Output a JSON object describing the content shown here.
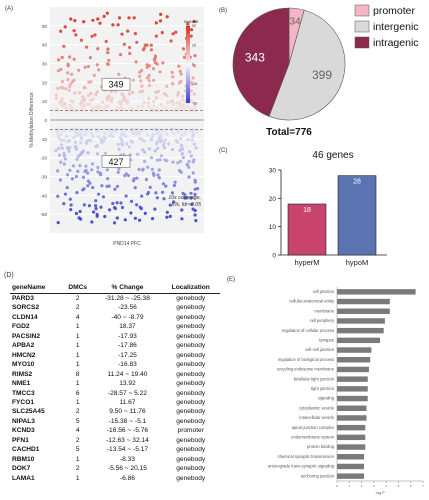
{
  "panels": {
    "a": "(A)",
    "b": "(B)",
    "c": "(C)",
    "d": "(D)",
    "e": "(E)"
  },
  "chart_data": [
    {
      "type": "scatter",
      "panel": "A",
      "ylabel": "% Methylation Difference",
      "xlabel": "PND14 PFC",
      "ylim": [
        -60,
        60
      ],
      "yticks": [
        -50,
        -40,
        -30,
        -20,
        -10,
        0,
        10,
        20,
        30,
        40,
        50
      ],
      "annotations": {
        "hyper_count": "349",
        "hypo_count": "427",
        "note_line1": "10x coverage,",
        "note_line2": "5%, fdr<0.05"
      },
      "legend": {
        "title": "MethDiff",
        "ticks": [
          "50",
          "25",
          "0",
          "-25",
          "-50"
        ]
      },
      "thresholds": [
        5,
        -5
      ],
      "series": [
        {
          "points_above": 349,
          "y_range": [
            5,
            57
          ]
        },
        {
          "points_below": 427,
          "y_range": [
            -55,
            -5
          ]
        }
      ],
      "colors": {
        "high": "#d7301f",
        "mid": "#f7f7f7",
        "low": "#3a3fcf"
      }
    },
    {
      "type": "pie",
      "panel": "B",
      "categories": [
        "promoter",
        "intergenic",
        "intragenic"
      ],
      "values": [
        34,
        399,
        343
      ],
      "colors": [
        "#f4b6c6",
        "#d9d9d9",
        "#8b2a4d"
      ],
      "total_label": "Total=776",
      "legend_position": "right"
    },
    {
      "type": "bar",
      "panel": "C",
      "title": "46 genes",
      "categories": [
        "hyperM",
        "hypoM"
      ],
      "values": [
        18,
        28
      ],
      "colors": [
        "#c8446c",
        "#5b73b0"
      ],
      "ylim": [
        0,
        30
      ],
      "yticks": [
        0,
        10,
        20,
        30
      ]
    },
    {
      "type": "table",
      "panel": "D",
      "columns": [
        "geneName",
        "DMCs",
        "% Change",
        "Localization"
      ],
      "rows": [
        [
          "PARD3",
          "2",
          "-31.28 ~ -25.38",
          "genebody"
        ],
        [
          "SORCS2",
          "2",
          "-23.56",
          "genebody"
        ],
        [
          "CLDN14",
          "4",
          "-40 ~ -8.79",
          "genebody"
        ],
        [
          "FGD2",
          "1",
          "18.37",
          "genebody"
        ],
        [
          "PACSIN2",
          "1",
          "-17.93",
          "genebody"
        ],
        [
          "APBA2",
          "1",
          "-17.86",
          "genebody"
        ],
        [
          "HMCN2",
          "1",
          "-17.25",
          "genebody"
        ],
        [
          "MYO10",
          "1",
          "-16.83",
          "genebody"
        ],
        [
          "RIMS2",
          "8",
          "11.24 ~ 19.40",
          "genebody"
        ],
        [
          "NME1",
          "1",
          "13.92",
          "genebody"
        ],
        [
          "TMCC3",
          "6",
          "-28.57 ~ 5.22",
          "genebody"
        ],
        [
          "FYCO1",
          "1",
          "11.67",
          "genebody"
        ],
        [
          "SLC25A45",
          "2",
          "9.50 ~ 11.76",
          "genebody"
        ],
        [
          "NIPAL3",
          "5",
          "-15.38 ~ -5.1",
          "genebody"
        ],
        [
          "KCND3",
          "4",
          "-16.56 ~ -5.76",
          "promoter"
        ],
        [
          "PFN1",
          "2",
          "-12.63 ~ 32.14",
          "genebody"
        ],
        [
          "CACHD1",
          "5",
          "-13.54 ~ -5.17",
          "genebody"
        ],
        [
          "RBM10",
          "1",
          "-8.33",
          "genebody"
        ],
        [
          "DOK7",
          "2",
          "-5.56 ~ 20.15",
          "genebody"
        ],
        [
          "LAMA1",
          "1",
          "-6.86",
          "genebody"
        ]
      ]
    },
    {
      "type": "bar",
      "panel": "E",
      "orientation": "horizontal",
      "xlabel": "-log P",
      "categories": [
        "cell junction",
        "cellular anatomical entity",
        "membrane",
        "cell periphery",
        "regulation of cellular process",
        "synapse",
        "cell-cell junction",
        "regulation of biological process",
        "recycling endosome membrane",
        "bicellular tight junction",
        "tight junction",
        "signaling",
        "cytoplasmic vesicle",
        "intracellular vesicle",
        "apical junction complex",
        "endomembrane system",
        "protein binding",
        "chemical synaptic transmission",
        "anterograde trans-synaptic signaling",
        "anchoring junction"
      ],
      "values": [
        6.4,
        4.3,
        4.3,
        3.9,
        3.8,
        3.5,
        2.8,
        2.7,
        2.6,
        2.5,
        2.5,
        2.5,
        2.4,
        2.4,
        2.3,
        2.3,
        2.3,
        2.2,
        2.2,
        2.2
      ],
      "xticks": [
        0,
        1,
        2,
        3,
        4,
        5,
        6,
        7
      ],
      "color": "#7a7a7a"
    }
  ]
}
